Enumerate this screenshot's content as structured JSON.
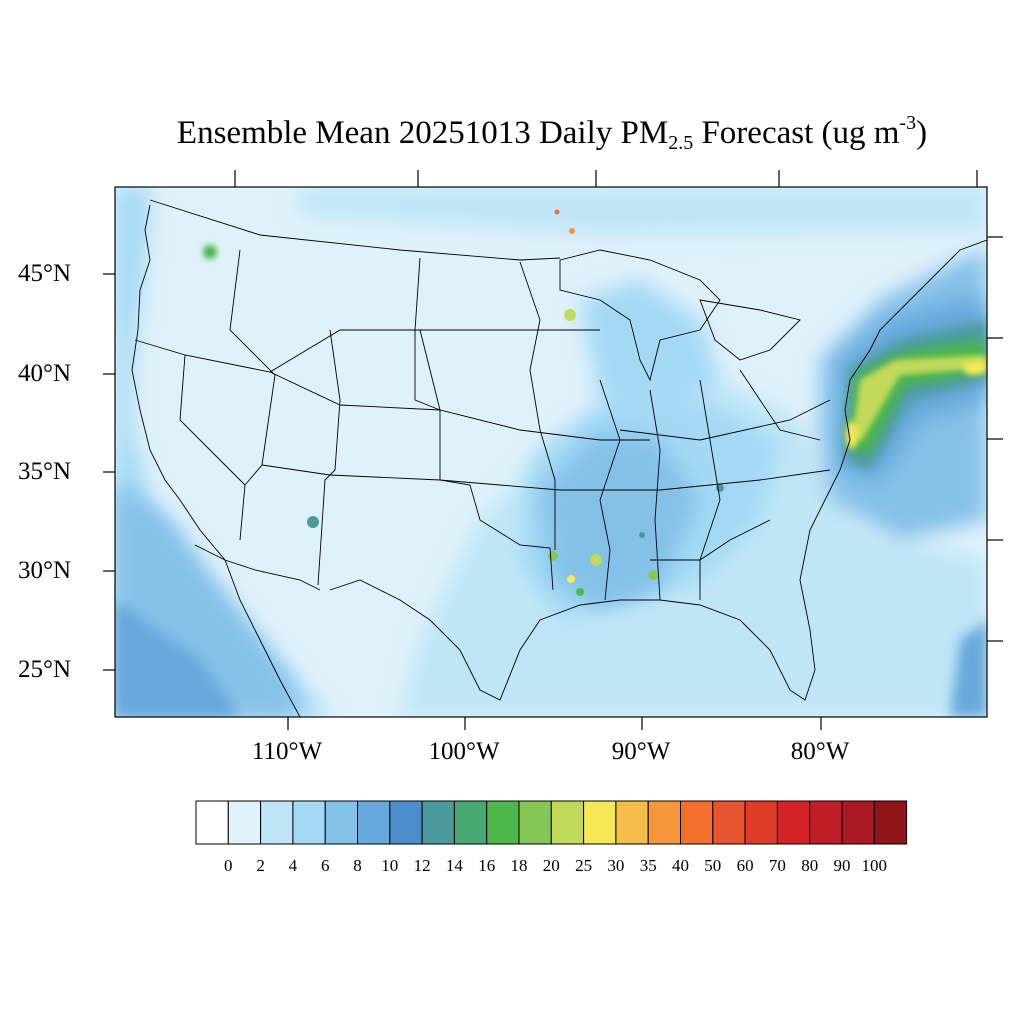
{
  "title": {
    "prefix": "Ensemble Mean 20251013 Daily PM",
    "subscript": "2.5",
    "middle": " Forecast (ug m",
    "superscript": "-3",
    "suffix": ")"
  },
  "lat_labels": [
    "45°N",
    "40°N",
    "35°N",
    "30°N",
    "25°N"
  ],
  "lon_labels": [
    "110°W",
    "100°W",
    "90°W",
    "80°W"
  ],
  "colorbar": {
    "levels": [
      "0",
      "2",
      "4",
      "6",
      "8",
      "10",
      "12",
      "14",
      "16",
      "18",
      "20",
      "25",
      "30",
      "35",
      "40",
      "50",
      "60",
      "70",
      "80",
      "90",
      "100"
    ],
    "colors": [
      "#ffffff",
      "#e0f3fb",
      "#bfe6f7",
      "#a3d9f5",
      "#84c1e8",
      "#67a8dc",
      "#4c8ecb",
      "#4c9a9e",
      "#47a871",
      "#4cb74a",
      "#86c655",
      "#c2d95a",
      "#f6e857",
      "#f7bd4a",
      "#f6973d",
      "#f36f2c",
      "#e85430",
      "#df3c28",
      "#d42328",
      "#be1e27",
      "#ab1a22",
      "#8f1519"
    ]
  },
  "map_background": "#dff1fb",
  "plumes": [
    {
      "level": 18,
      "note": "none"
    }
  ]
}
